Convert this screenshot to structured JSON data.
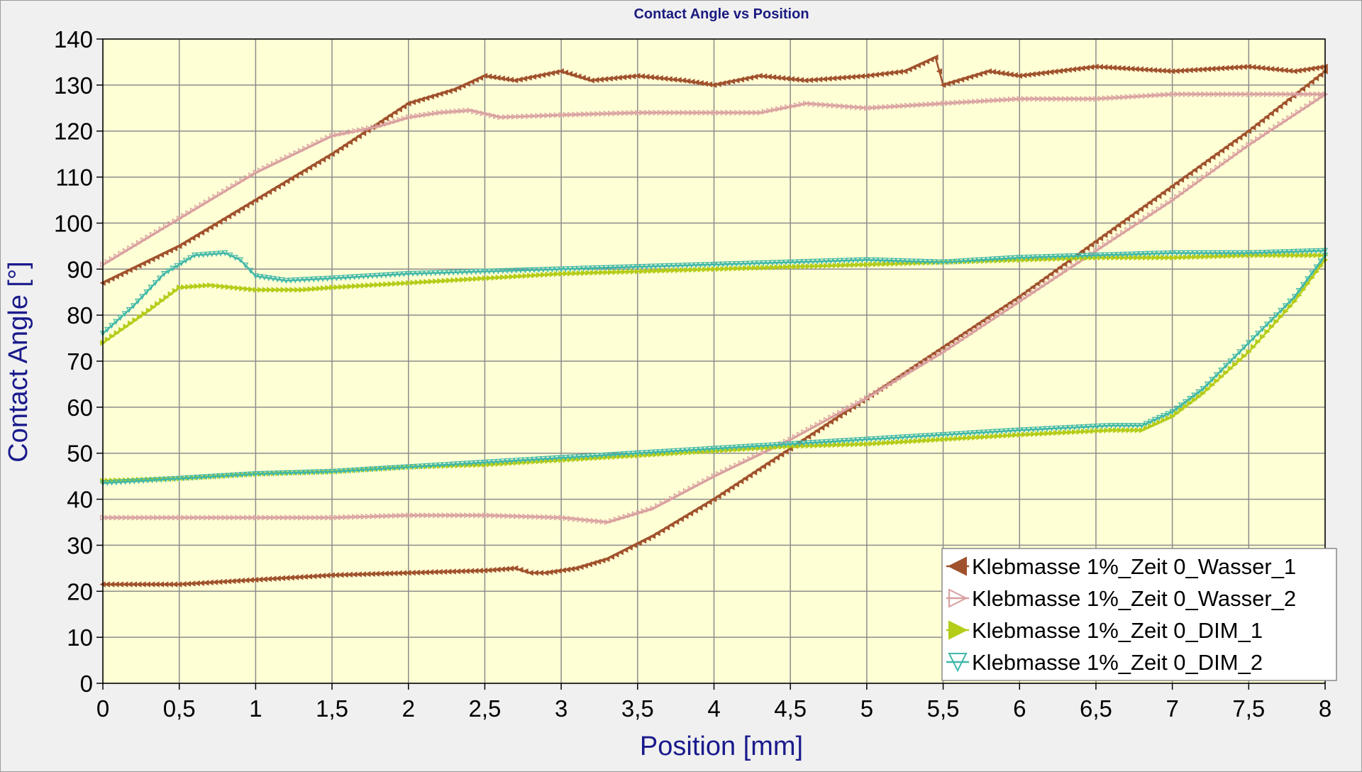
{
  "chart_data": {
    "type": "line",
    "title": "Contact Angle vs Position",
    "xlabel": "Position [mm]",
    "ylabel": "Contact Angle [°]",
    "xlim": [
      0,
      8
    ],
    "ylim": [
      0,
      140
    ],
    "grid": true,
    "legend_position": "bottom-right",
    "x_ticks": [
      {
        "v": 0,
        "label": "0"
      },
      {
        "v": 0.5,
        "label": "0,5"
      },
      {
        "v": 1,
        "label": "1"
      },
      {
        "v": 1.5,
        "label": "1,5"
      },
      {
        "v": 2,
        "label": "2"
      },
      {
        "v": 2.5,
        "label": "2,5"
      },
      {
        "v": 3,
        "label": "3"
      },
      {
        "v": 3.5,
        "label": "3,5"
      },
      {
        "v": 4,
        "label": "4"
      },
      {
        "v": 4.5,
        "label": "4,5"
      },
      {
        "v": 5,
        "label": "5"
      },
      {
        "v": 5.5,
        "label": "5,5"
      },
      {
        "v": 6,
        "label": "6"
      },
      {
        "v": 6.5,
        "label": "6,5"
      },
      {
        "v": 7,
        "label": "7"
      },
      {
        "v": 7.5,
        "label": "7,5"
      },
      {
        "v": 8,
        "label": "8"
      }
    ],
    "y_ticks": [
      {
        "v": 0,
        "label": "0"
      },
      {
        "v": 10,
        "label": "10"
      },
      {
        "v": 20,
        "label": "20"
      },
      {
        "v": 30,
        "label": "30"
      },
      {
        "v": 40,
        "label": "40"
      },
      {
        "v": 50,
        "label": "50"
      },
      {
        "v": 60,
        "label": "60"
      },
      {
        "v": 70,
        "label": "70"
      },
      {
        "v": 80,
        "label": "80"
      },
      {
        "v": 90,
        "label": "90"
      },
      {
        "v": 100,
        "label": "100"
      },
      {
        "v": 110,
        "label": "110"
      },
      {
        "v": 120,
        "label": "120"
      },
      {
        "v": 130,
        "label": "130"
      },
      {
        "v": 140,
        "label": "140"
      }
    ],
    "colors": {
      "plot_background": "#ffffd5",
      "grid": "#8c8c8c"
    },
    "series": [
      {
        "name": "Klebmasse 1%_Zeit 0_Wasser_1",
        "color": "#a0522d",
        "marker": "filled-triangle-left",
        "x": [
          0,
          0.5,
          1,
          1.5,
          2,
          2.3,
          2.5,
          2.7,
          3.0,
          3.2,
          3.5,
          3.8,
          4.0,
          4.3,
          4.6,
          5.0,
          5.25,
          5.45,
          5.5,
          5.8,
          6.0,
          6.5,
          7.0,
          7.5,
          7.8,
          8.0,
          8.0,
          7.5,
          7.0,
          6.5,
          6.0,
          5.5,
          5.0,
          4.5,
          4.0,
          3.6,
          3.3,
          3.1,
          2.9,
          2.8,
          2.7,
          2.5,
          2.0,
          1.5,
          1.0,
          0.5,
          0.0
        ],
        "y": [
          87,
          95,
          105,
          115,
          126,
          129,
          132,
          131,
          133,
          131,
          132,
          131,
          130,
          132,
          131,
          132,
          133,
          136,
          130,
          133,
          132,
          134,
          133,
          134,
          133,
          134,
          133,
          120,
          108,
          96,
          84,
          73,
          62,
          51,
          40,
          32,
          27,
          25,
          24,
          24,
          25,
          24.5,
          24,
          23.5,
          22.5,
          21.5,
          21.5
        ]
      },
      {
        "name": "Klebmasse 1%_Zeit 0_Wasser_2",
        "color": "#d9a0a0",
        "marker": "open-triangle-right",
        "x": [
          0,
          0.5,
          1,
          1.5,
          1.8,
          2.0,
          2.2,
          2.4,
          2.6,
          3.0,
          3.5,
          4.0,
          4.3,
          4.6,
          5.0,
          5.5,
          6.0,
          6.5,
          7.0,
          7.5,
          8.0,
          8.0,
          7.5,
          7.0,
          6.5,
          6.0,
          5.5,
          5.0,
          4.5,
          4.0,
          3.6,
          3.3,
          3.0,
          2.5,
          2.0,
          1.5,
          1.0,
          0.5,
          0.0
        ],
        "y": [
          91,
          101,
          111,
          119,
          121,
          123,
          124,
          124.5,
          123,
          123.5,
          124,
          124,
          124,
          126,
          125,
          126,
          127,
          127,
          128,
          128,
          128,
          128,
          117,
          105,
          94,
          83,
          72,
          62,
          53,
          45,
          38,
          35,
          36,
          36.5,
          36.5,
          36,
          36,
          36,
          36
        ]
      },
      {
        "name": "Klebmasse 1%_Zeit 0_DIM_1",
        "color": "#b5cc18",
        "marker": "filled-triangle-right",
        "x": [
          0,
          0.3,
          0.5,
          0.7,
          1.0,
          1.3,
          1.5,
          2.0,
          2.5,
          3.0,
          3.5,
          4.0,
          4.5,
          5.0,
          5.5,
          6.0,
          6.5,
          7.0,
          7.5,
          8.0,
          8.0,
          7.8,
          7.5,
          7.2,
          7.0,
          6.8,
          6.6,
          6.0,
          5.5,
          5.0,
          4.5,
          4.0,
          3.5,
          3.0,
          2.5,
          2.0,
          1.5,
          1.0,
          0.5,
          0.0
        ],
        "y": [
          74,
          81,
          86,
          86.5,
          85.5,
          85.5,
          86,
          87,
          88,
          89,
          89.5,
          90,
          90.5,
          91,
          91.5,
          92,
          92.5,
          92.5,
          93,
          93,
          92,
          83,
          72,
          63,
          58,
          55,
          55,
          54,
          53,
          52,
          51.5,
          50.5,
          49.5,
          48.5,
          47.5,
          47,
          46,
          45.5,
          44.5,
          44
        ]
      },
      {
        "name": "Klebmasse 1%_Zeit 0_DIM_2",
        "color": "#40b8a8",
        "marker": "open-triangle-down",
        "x": [
          0,
          0.2,
          0.4,
          0.6,
          0.8,
          0.9,
          1.0,
          1.2,
          1.5,
          2.0,
          2.5,
          3.0,
          3.5,
          4.0,
          4.5,
          5.0,
          5.5,
          6.0,
          6.5,
          7.0,
          7.5,
          8.0,
          8.0,
          7.8,
          7.5,
          7.2,
          7.0,
          6.8,
          6.6,
          6.0,
          5.5,
          5.0,
          4.5,
          4.0,
          3.5,
          3.0,
          2.5,
          2.0,
          1.5,
          1.0,
          0.5,
          0.0
        ],
        "y": [
          76,
          82,
          89,
          93,
          93.5,
          92,
          88.5,
          87.5,
          88,
          89,
          89.5,
          90,
          90.5,
          91,
          91.5,
          92,
          91.5,
          92.5,
          93,
          93.5,
          93.5,
          94,
          93,
          84,
          74,
          64,
          59,
          56,
          56,
          55,
          54,
          53,
          52,
          51,
          50,
          49,
          48,
          47,
          46,
          45.5,
          44.5,
          43.5
        ]
      }
    ]
  }
}
